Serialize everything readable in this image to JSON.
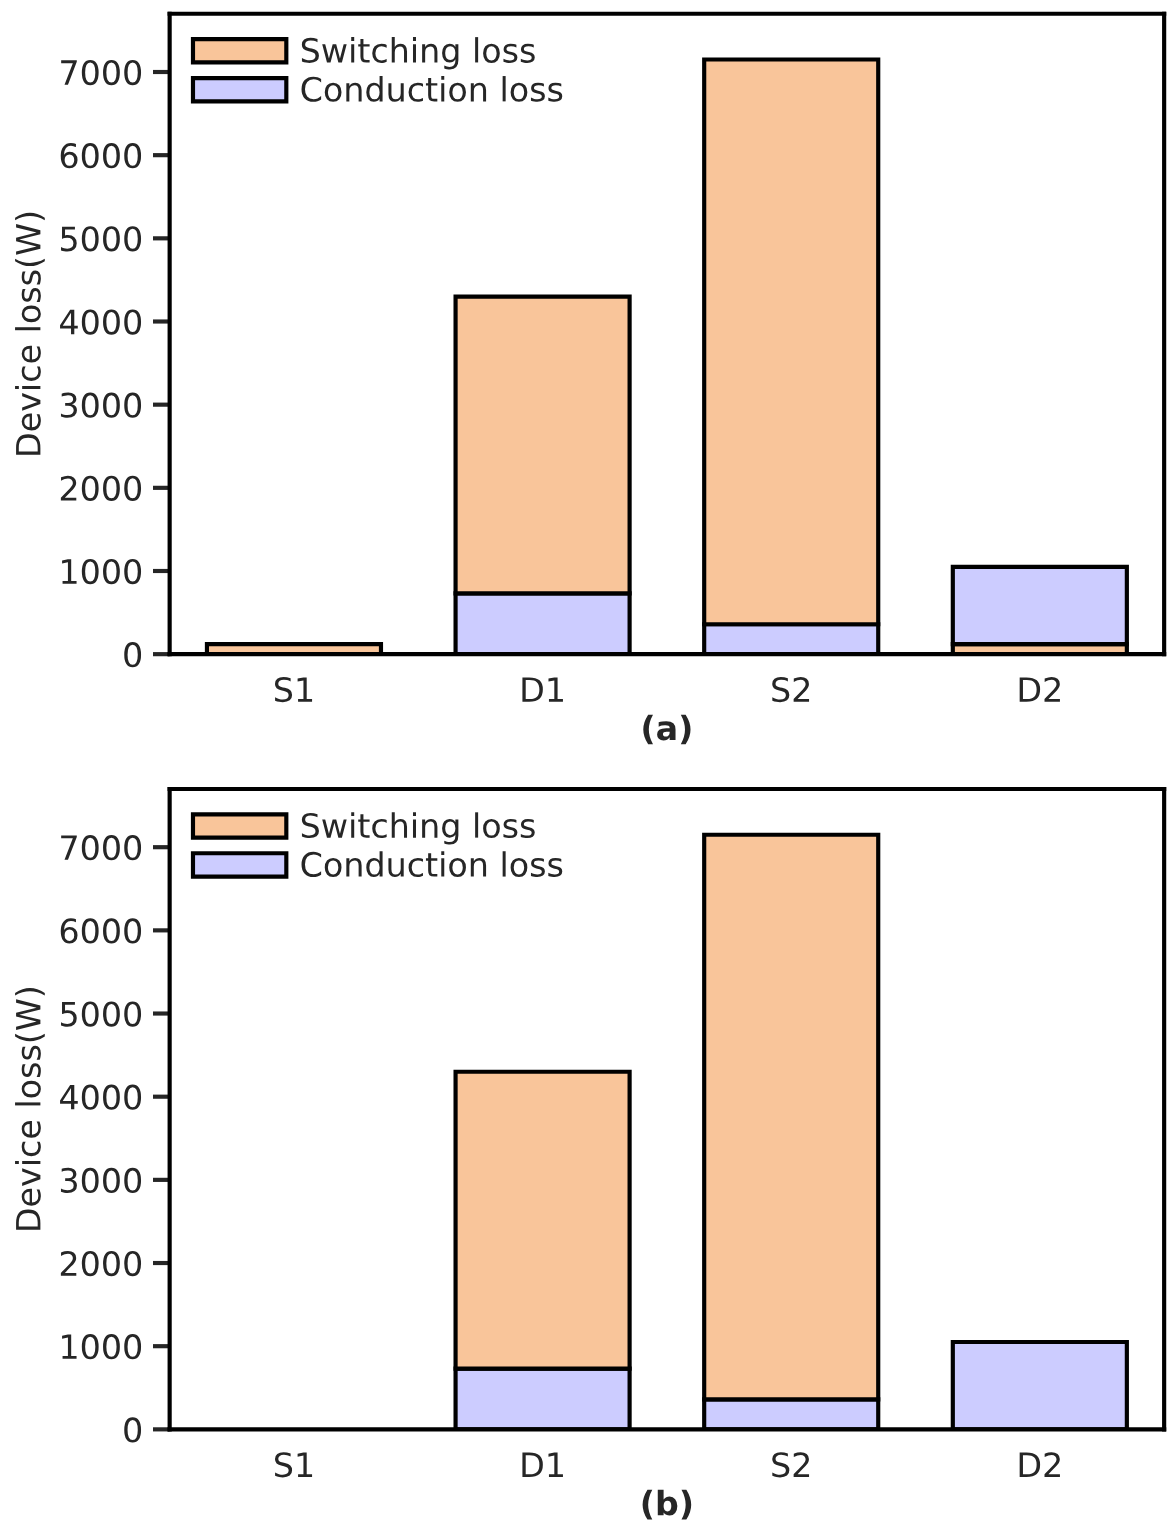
{
  "chart_data": [
    {
      "type": "bar",
      "title": "(a)",
      "ylabel": "Device loss(W)",
      "categories": [
        "S1",
        "D1",
        "S2",
        "D2"
      ],
      "stacked": true,
      "ylim": [
        0,
        7700
      ],
      "yticks": [
        0,
        1000,
        2000,
        3000,
        4000,
        5000,
        6000,
        7000
      ],
      "legend": "top left",
      "grid": false,
      "series": [
        {
          "name": "Conduction loss",
          "color": "#ccccff",
          "values": [
            null,
            730,
            360,
            null
          ]
        },
        {
          "name": "Switching loss",
          "color": "#f9c59a",
          "values": [
            120,
            3570,
            6790,
            120
          ]
        },
        {
          "color": "#ccccff",
          "values": [
            null,
            null,
            null,
            930
          ]
        }
      ]
    },
    {
      "type": "bar",
      "title": "(b)",
      "ylabel": "Device loss(W)",
      "categories": [
        "S1",
        "D1",
        "S2",
        "D2"
      ],
      "stacked": true,
      "ylim": [
        0,
        7700
      ],
      "yticks": [
        0,
        1000,
        2000,
        3000,
        4000,
        5000,
        6000,
        7000
      ],
      "legend": "top left",
      "grid": false,
      "series": [
        {
          "name": "Conduction loss",
          "color": "#ccccff",
          "values": [
            null,
            730,
            360,
            1050
          ]
        },
        {
          "name": "Switching loss",
          "color": "#f9c59a",
          "values": [
            null,
            3570,
            6790,
            null
          ]
        }
      ]
    }
  ]
}
